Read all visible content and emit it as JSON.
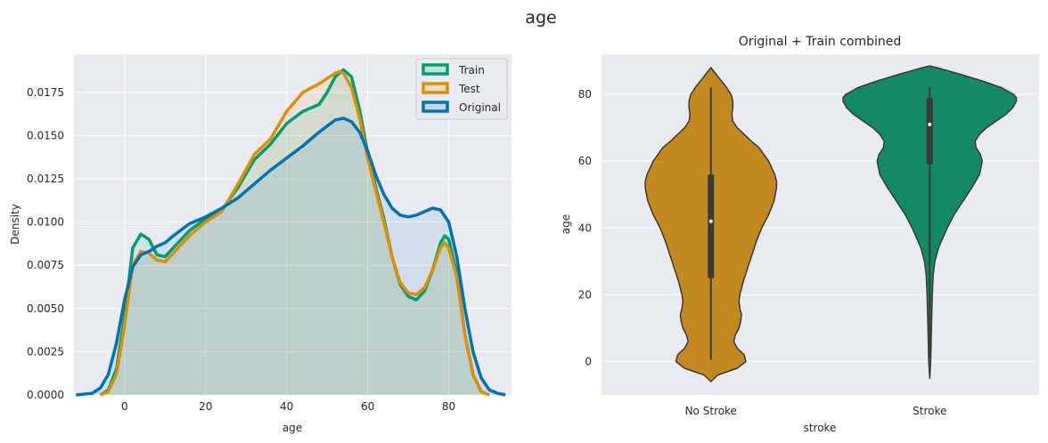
{
  "figure": {
    "title": "age"
  },
  "chart_data": [
    {
      "type": "area",
      "kind": "kde",
      "title": "",
      "xlabel": "age",
      "ylabel": "Density",
      "xlim": [
        -12.5,
        95.5
      ],
      "ylim": [
        0,
        0.0197
      ],
      "xticks": [
        0,
        20,
        40,
        60,
        80
      ],
      "yticks": [
        0.0,
        0.0025,
        0.005,
        0.0075,
        0.01,
        0.0125,
        0.015,
        0.0175
      ],
      "ytick_labels": [
        "0.0000",
        "0.0025",
        "0.0050",
        "0.0075",
        "0.0100",
        "0.0125",
        "0.0150",
        "0.0175"
      ],
      "grid": true,
      "legend": "top-right",
      "series": [
        {
          "name": "Train",
          "color": "#029e73",
          "points": [
            [
              -6,
              0
            ],
            [
              -4,
              0.0003
            ],
            [
              -2,
              0.0015
            ],
            [
              0,
              0.0045
            ],
            [
              2,
              0.0085
            ],
            [
              4,
              0.0093
            ],
            [
              6,
              0.009
            ],
            [
              8,
              0.0081
            ],
            [
              10,
              0.008
            ],
            [
              12,
              0.0085
            ],
            [
              16,
              0.0095
            ],
            [
              20,
              0.0102
            ],
            [
              24,
              0.0107
            ],
            [
              28,
              0.012
            ],
            [
              32,
              0.0136
            ],
            [
              36,
              0.0145
            ],
            [
              40,
              0.0157
            ],
            [
              44,
              0.0164
            ],
            [
              48,
              0.0168
            ],
            [
              50,
              0.0175
            ],
            [
              52,
              0.0184
            ],
            [
              54,
              0.0188
            ],
            [
              56,
              0.0184
            ],
            [
              58,
              0.0165
            ],
            [
              60,
              0.014
            ],
            [
              62,
              0.012
            ],
            [
              64,
              0.0102
            ],
            [
              66,
              0.008
            ],
            [
              68,
              0.0064
            ],
            [
              70,
              0.0057
            ],
            [
              72,
              0.0055
            ],
            [
              74,
              0.006
            ],
            [
              76,
              0.0072
            ],
            [
              78,
              0.0088
            ],
            [
              79,
              0.0092
            ],
            [
              80,
              0.009
            ],
            [
              82,
              0.007
            ],
            [
              84,
              0.0035
            ],
            [
              86,
              0.0012
            ],
            [
              88,
              0.0002
            ],
            [
              90,
              0
            ]
          ]
        },
        {
          "name": "Test",
          "color": "#de8f05",
          "points": [
            [
              -6,
              0
            ],
            [
              -4,
              0.0002
            ],
            [
              -2,
              0.0012
            ],
            [
              0,
              0.004
            ],
            [
              2,
              0.0075
            ],
            [
              4,
              0.0083
            ],
            [
              6,
              0.0082
            ],
            [
              8,
              0.0078
            ],
            [
              10,
              0.0077
            ],
            [
              12,
              0.0082
            ],
            [
              16,
              0.0092
            ],
            [
              20,
              0.01
            ],
            [
              24,
              0.0106
            ],
            [
              28,
              0.0122
            ],
            [
              32,
              0.0139
            ],
            [
              36,
              0.0148
            ],
            [
              40,
              0.0164
            ],
            [
              44,
              0.0175
            ],
            [
              48,
              0.018
            ],
            [
              52,
              0.0186
            ],
            [
              53,
              0.0187
            ],
            [
              54,
              0.0186
            ],
            [
              56,
              0.0178
            ],
            [
              58,
              0.016
            ],
            [
              60,
              0.0137
            ],
            [
              62,
              0.0118
            ],
            [
              64,
              0.01
            ],
            [
              66,
              0.008
            ],
            [
              68,
              0.0065
            ],
            [
              70,
              0.0059
            ],
            [
              72,
              0.0058
            ],
            [
              74,
              0.0062
            ],
            [
              76,
              0.0072
            ],
            [
              78,
              0.0085
            ],
            [
              79,
              0.0088
            ],
            [
              80,
              0.0085
            ],
            [
              82,
              0.0068
            ],
            [
              84,
              0.0035
            ],
            [
              86,
              0.0012
            ],
            [
              88,
              0.0002
            ],
            [
              90,
              0
            ]
          ]
        },
        {
          "name": "Original",
          "color": "#0173b2",
          "points": [
            [
              -12,
              0
            ],
            [
              -8,
              0.0001
            ],
            [
              -6,
              0.0004
            ],
            [
              -4,
              0.0012
            ],
            [
              -2,
              0.003
            ],
            [
              0,
              0.0055
            ],
            [
              2,
              0.0074
            ],
            [
              4,
              0.0081
            ],
            [
              6,
              0.0083
            ],
            [
              8,
              0.0086
            ],
            [
              10,
              0.0088
            ],
            [
              12,
              0.0092
            ],
            [
              16,
              0.0099
            ],
            [
              20,
              0.0103
            ],
            [
              24,
              0.0108
            ],
            [
              28,
              0.0114
            ],
            [
              32,
              0.0122
            ],
            [
              36,
              0.013
            ],
            [
              40,
              0.0137
            ],
            [
              44,
              0.0144
            ],
            [
              48,
              0.0152
            ],
            [
              52,
              0.0159
            ],
            [
              54,
              0.016
            ],
            [
              56,
              0.0158
            ],
            [
              58,
              0.0152
            ],
            [
              60,
              0.0141
            ],
            [
              62,
              0.0127
            ],
            [
              64,
              0.0116
            ],
            [
              66,
              0.0108
            ],
            [
              68,
              0.0104
            ],
            [
              70,
              0.0103
            ],
            [
              72,
              0.0104
            ],
            [
              74,
              0.0106
            ],
            [
              76,
              0.0108
            ],
            [
              78,
              0.0107
            ],
            [
              80,
              0.01
            ],
            [
              82,
              0.008
            ],
            [
              84,
              0.005
            ],
            [
              86,
              0.0025
            ],
            [
              88,
              0.001
            ],
            [
              90,
              0.0003
            ],
            [
              92,
              0.0001
            ],
            [
              94,
              0
            ]
          ]
        }
      ]
    },
    {
      "type": "violin",
      "title": "Original + Train combined",
      "xlabel": "stroke",
      "ylabel": "age",
      "categories": [
        "No Stroke",
        "Stroke"
      ],
      "ylim": [
        -10,
        92
      ],
      "yticks": [
        0,
        20,
        40,
        60,
        80
      ],
      "grid": true,
      "violins": [
        {
          "category": "No Stroke",
          "color": "#c48820",
          "whisker": [
            0.5,
            82
          ],
          "quartiles": [
            25,
            56
          ],
          "median": 42,
          "profile": [
            [
              -6,
              0.0
            ],
            [
              -4,
              0.08
            ],
            [
              -2,
              0.3
            ],
            [
              0,
              0.4
            ],
            [
              2,
              0.38
            ],
            [
              4,
              0.3
            ],
            [
              6,
              0.26
            ],
            [
              8,
              0.28
            ],
            [
              10,
              0.32
            ],
            [
              12,
              0.34
            ],
            [
              14,
              0.35
            ],
            [
              16,
              0.33
            ],
            [
              18,
              0.32
            ],
            [
              20,
              0.33
            ],
            [
              24,
              0.37
            ],
            [
              28,
              0.42
            ],
            [
              32,
              0.47
            ],
            [
              36,
              0.52
            ],
            [
              40,
              0.58
            ],
            [
              44,
              0.66
            ],
            [
              48,
              0.72
            ],
            [
              52,
              0.75
            ],
            [
              54,
              0.75
            ],
            [
              56,
              0.73
            ],
            [
              60,
              0.66
            ],
            [
              64,
              0.55
            ],
            [
              66,
              0.46
            ],
            [
              68,
              0.38
            ],
            [
              70,
              0.3
            ],
            [
              72,
              0.25
            ],
            [
              74,
              0.24
            ],
            [
              76,
              0.25
            ],
            [
              78,
              0.25
            ],
            [
              80,
              0.23
            ],
            [
              82,
              0.18
            ],
            [
              84,
              0.12
            ],
            [
              86,
              0.06
            ],
            [
              88,
              0.0
            ]
          ]
        },
        {
          "category": "Stroke",
          "color": "#138a65",
          "whisker": [
            1,
            82
          ],
          "quartiles": [
            59,
            79
          ],
          "median": 71,
          "profile": [
            [
              -5,
              0.0
            ],
            [
              0,
              0.012
            ],
            [
              10,
              0.02
            ],
            [
              20,
              0.03
            ],
            [
              26,
              0.04
            ],
            [
              30,
              0.06
            ],
            [
              34,
              0.1
            ],
            [
              40,
              0.2
            ],
            [
              44,
              0.28
            ],
            [
              48,
              0.38
            ],
            [
              52,
              0.48
            ],
            [
              56,
              0.57
            ],
            [
              60,
              0.6
            ],
            [
              62,
              0.58
            ],
            [
              64,
              0.53
            ],
            [
              66,
              0.52
            ],
            [
              68,
              0.57
            ],
            [
              70,
              0.65
            ],
            [
              72,
              0.76
            ],
            [
              74,
              0.87
            ],
            [
              76,
              0.95
            ],
            [
              78,
              0.99
            ],
            [
              79,
              0.99
            ],
            [
              80,
              0.96
            ],
            [
              82,
              0.82
            ],
            [
              84,
              0.6
            ],
            [
              86,
              0.35
            ],
            [
              88,
              0.08
            ],
            [
              88.5,
              0.0
            ]
          ]
        }
      ]
    }
  ]
}
